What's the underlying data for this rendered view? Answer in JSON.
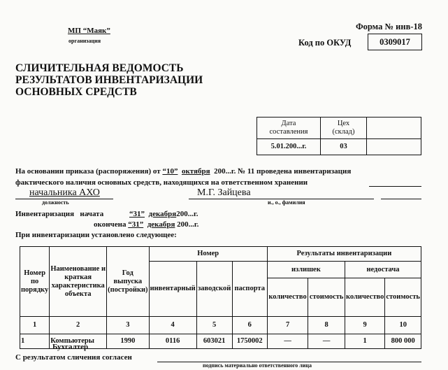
{
  "header": {
    "organization": "МП “Маяк”",
    "organization_label": "организация",
    "form_number": "Форма № инв-18",
    "okud_label": "Код по ОКУД",
    "okud_code": "0309017"
  },
  "title": [
    "СЛИЧИТЕЛЬНАЯ ВЕДОМОСТЬ",
    "РЕЗУЛЬТАТОВ ИНВЕНТАРИЗАЦИИ",
    "ОСНОВНЫХ СРЕДСТВ"
  ],
  "info_table": {
    "date_header": [
      "Дата",
      "составления"
    ],
    "shop_header": [
      "Цех",
      "(склад)"
    ],
    "date_value": "5.01.200...г.",
    "shop_value": "03"
  },
  "body": {
    "line1_pre": "На основании приказа (распоряжения) от",
    "day": "“10”",
    "month": "октября",
    "line1_post": "200...г. № 11 проведена инвентаризация",
    "line2": "фактического наличия основных средств, находящихся на ответственном хранении",
    "position": "начальника АХО",
    "position_label": "должность",
    "person": "М.Г. Зайцева",
    "person_label": "и., о., фамилия",
    "inv_label": "Инвентаризация",
    "started": "начата",
    "start_day": "“31”",
    "start_month": "декабря",
    "start_year": "200...г.",
    "finished": "окончена",
    "end_day": "“31”",
    "end_month": "декабря",
    "end_year": "200...г.",
    "established": "При инвентаризации установлено следующее:"
  },
  "table": {
    "h_num": "Номер по порядку",
    "h_name": "Наименование и краткая характеристика объекта",
    "h_year": "Год выпуска (постройки)",
    "h_number": "Номер",
    "h_inv": "инвентарный",
    "h_factory": "заводской",
    "h_passport": "паспорта",
    "h_results": "Результаты инвентаризации",
    "h_surplus": "излишек",
    "h_shortage": "недостача",
    "h_qty": "количество",
    "h_cost": "стоимость",
    "col_numbers": [
      "1",
      "2",
      "3",
      "4",
      "5",
      "6",
      "7",
      "8",
      "9",
      "10"
    ],
    "rows": [
      [
        "1",
        "Компьютеры",
        "1990",
        "0116",
        "603021",
        "1750002",
        "—",
        "—",
        "1",
        "800 000"
      ]
    ]
  },
  "footer": {
    "accountant": "Бухгалтер",
    "agree": "С результатом сличения согласен",
    "signature_label": "подпись материально ответственного лица"
  }
}
